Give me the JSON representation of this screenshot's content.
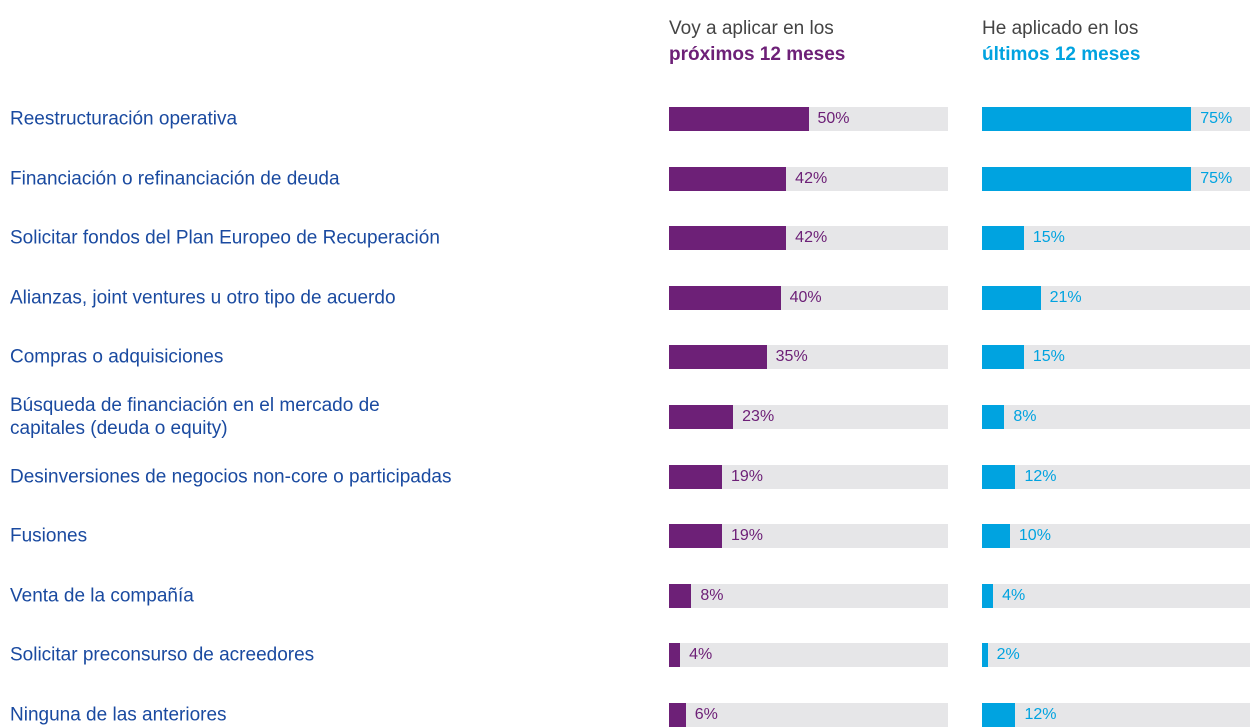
{
  "chart_data": {
    "type": "bar",
    "orientation": "horizontal",
    "categories": [
      "Reestructuración operativa",
      "Financiación o refinanciación de deuda",
      "Solicitar fondos del Plan Europeo de Recuperación",
      "Alianzas, joint ventures u otro tipo de acuerdo",
      "Compras o adquisiciones",
      "Búsqueda de financiación en el mercado de\ncapitales (deuda o equity)",
      "Desinversiones de negocios non-core o participadas",
      "Fusiones",
      "Venta de la compañía",
      "Solicitar preconsurso de acreedores",
      "Ninguna de las anteriores"
    ],
    "xlim": [
      0,
      100
    ],
    "series": [
      {
        "heading": "Voy a aplicar en los",
        "name": "próximos 12 meses",
        "color": "#6d2077",
        "values": [
          50,
          42,
          42,
          40,
          35,
          23,
          19,
          19,
          8,
          4,
          6
        ],
        "value_labels": [
          "50%",
          "42%",
          "42%",
          "40%",
          "35%",
          "23%",
          "19%",
          "19%",
          "8%",
          "4%",
          "6%"
        ]
      },
      {
        "heading": "He aplicado en los",
        "name": "últimos 12 meses",
        "color": "#00a3e0",
        "values": [
          75,
          75,
          15,
          21,
          15,
          8,
          12,
          10,
          4,
          2,
          12
        ],
        "value_labels": [
          "75%",
          "75%",
          "15%",
          "21%",
          "15%",
          "8%",
          "12%",
          "10%",
          "4%",
          "2%",
          "12%"
        ]
      }
    ]
  }
}
